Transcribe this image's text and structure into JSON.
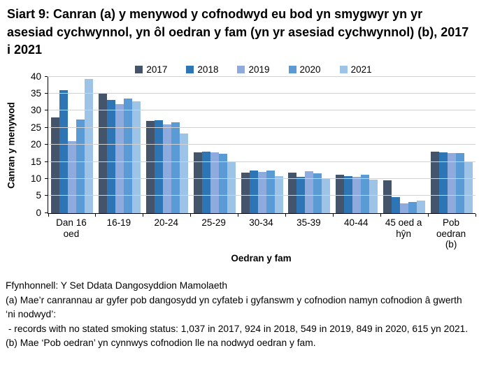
{
  "title": "Siart 9: Canran (a) y menywod y cofnodwyd eu bod yn smygwyr yn yr asesiad cychwynnol, yn ôl oedran y fam (yn yr asesiad cychwynnol) (b), 2017 i 2021",
  "chart_data": {
    "type": "bar",
    "title": "Siart 9: Canran (a) y menywod y cofnodwyd eu bod yn smygwyr yn yr asesiad cychwynnol, yn ôl oedran y fam (yn yr asesiad cychwynnol) (b), 2017 i 2021",
    "xlabel": "Oedran y fam",
    "ylabel": "Canran y menywod",
    "ylim": [
      0,
      40
    ],
    "ytick_step": 5,
    "grid": true,
    "legend_position": "top",
    "categories": [
      "Dan 16 oed",
      "16-19",
      "20-24",
      "25-29",
      "30-34",
      "35-39",
      "40-44",
      "45 oed a hŷn",
      "Pob oedran (b)"
    ],
    "tick_labels": [
      "Dan 16\noed",
      "16-19",
      "20-24",
      "25-29",
      "30-34",
      "35-39",
      "40-44",
      "45 oed a\nhŷn",
      "Pob\noedran\n(b)"
    ],
    "series": [
      {
        "name": "2017",
        "color": "#44546A",
        "values": [
          28.0,
          35.0,
          27.1,
          17.8,
          11.8,
          11.9,
          11.2,
          9.6,
          17.9
        ]
      },
      {
        "name": "2018",
        "color": "#2E75B6",
        "values": [
          36.0,
          33.2,
          27.3,
          17.9,
          12.5,
          10.5,
          10.9,
          4.7,
          17.8
        ]
      },
      {
        "name": "2019",
        "color": "#8FAADC",
        "values": [
          21.0,
          32.0,
          25.9,
          17.7,
          12.1,
          12.2,
          10.5,
          2.9,
          17.5
        ]
      },
      {
        "name": "2020",
        "color": "#5B9BD5",
        "values": [
          27.4,
          33.5,
          26.5,
          17.3,
          12.5,
          11.7,
          11.2,
          3.3,
          17.5
        ]
      },
      {
        "name": "2021",
        "color": "#9DC3E6",
        "values": [
          39.4,
          32.8,
          23.4,
          15.0,
          10.7,
          10.1,
          9.7,
          3.7,
          15.0
        ]
      }
    ]
  },
  "footnotes": {
    "lines": [
      "Ffynhonnell: Y Set Ddata Dangosyddion Mamolaeth",
      "(a) Mae’r canrannau ar gyfer pob dangosydd yn cyfateb i gyfanswm y cofnodion namyn cofnodion â gwerth ‘ni nodwyd’:",
      " - records with no stated smoking status: 1,037 in 2017, 924 in 2018, 549 in 2019, 849 in 2020, 615 yn 2021.",
      "(b) Mae ‘Pob oedran’ yn cynnwys cofnodion lle na nodwyd oedran y fam."
    ]
  }
}
